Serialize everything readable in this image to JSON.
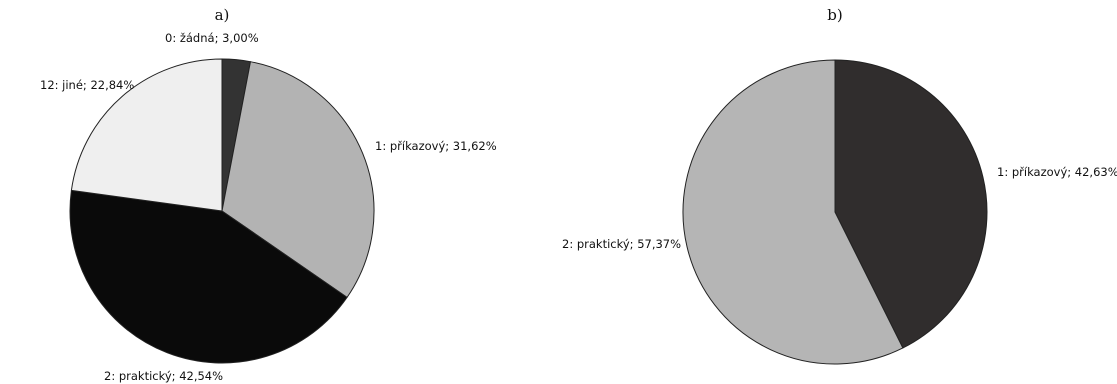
{
  "chart_data": [
    {
      "type": "pie",
      "title": "a)",
      "slices": [
        {
          "label": "0: žádná; 3,00%",
          "value": 3.0,
          "color": "#333333"
        },
        {
          "label": "1: příkazový; 31,62%",
          "value": 31.62,
          "color": "#b3b3b3"
        },
        {
          "label": "2: praktický; 42,54%",
          "value": 42.54,
          "color": "#0a0a0a"
        },
        {
          "label": "12: jiné; 22,84%",
          "value": 22.84,
          "color": "#efefef"
        }
      ]
    },
    {
      "type": "pie",
      "title": "b)",
      "slices": [
        {
          "label": "1: příkazový; 42,63%",
          "value": 42.63,
          "color": "#302d2d"
        },
        {
          "label": "2: praktický; 57,37%",
          "value": 57.37,
          "color": "#b5b5b5"
        }
      ]
    }
  ]
}
